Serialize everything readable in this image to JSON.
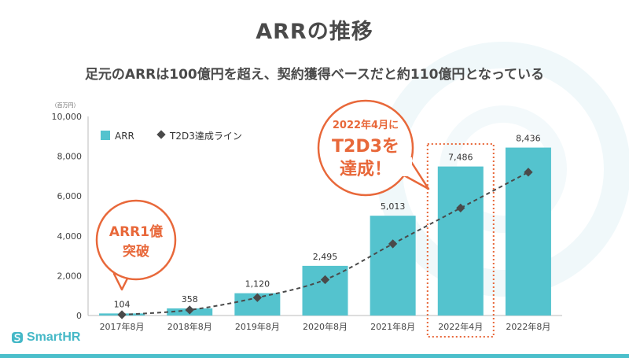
{
  "page": {
    "title": "ARRの推移",
    "subtitle": "足元のARRは100億円を超え、契約獲得ベースだと約110億円となっている",
    "logo_text": "SmartHR",
    "logo_icon": "smarthr-logo-icon"
  },
  "colors": {
    "bar": "#54c3ce",
    "line": "#4a4a4a",
    "accent": "#e8683a",
    "brand": "#45b8c7"
  },
  "chart_data": {
    "type": "bar",
    "y_unit": "（百万円）",
    "categories": [
      "2017年8月",
      "2018年8月",
      "2019年8月",
      "2020年8月",
      "2021年8月",
      "2022年4月",
      "2022年8月"
    ],
    "ylim": [
      0,
      10000
    ],
    "yticks": [
      0,
      2000,
      4000,
      6000,
      8000,
      10000
    ],
    "ytick_labels": [
      "0",
      "2,000",
      "4,000",
      "6,000",
      "8,000",
      "10,000"
    ],
    "grid": false,
    "legend_position": "top-left",
    "series": [
      {
        "name": "ARR",
        "kind": "bar",
        "values": [
          104,
          358,
          1120,
          2495,
          5013,
          7486,
          8436
        ],
        "labels": [
          "104",
          "358",
          "1,120",
          "2,495",
          "5,013",
          "7,486",
          "8,436"
        ]
      },
      {
        "name": "T2D3達成ライン",
        "kind": "line",
        "style": "dashed",
        "marker": "diamond",
        "values": [
          40,
          280,
          900,
          1800,
          3600,
          5400,
          7200
        ]
      }
    ],
    "highlight_category": "2022年4月",
    "annotations": [
      {
        "lines": [
          "ARR1億",
          "突破"
        ],
        "target": "2017年8月"
      },
      {
        "lines": [
          "2022年4月に",
          "T2D3を",
          "達成！"
        ],
        "target": "2022年4月"
      }
    ]
  }
}
